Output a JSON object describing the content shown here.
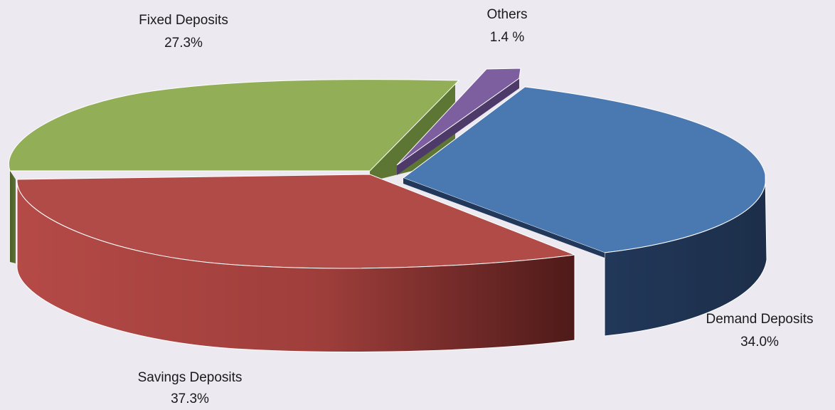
{
  "chart_data": {
    "type": "pie",
    "title": "",
    "legend": "none",
    "slices": [
      {
        "name": "Fixed Deposits",
        "value": 27.3,
        "label": "27.3%",
        "color": "#92AE57",
        "side_color": "#556B30"
      },
      {
        "name": "Others",
        "value": 1.4,
        "label": "1.4 %",
        "color": "#7D5FA0",
        "side_color": "#4E3A69"
      },
      {
        "name": "Demand Deposits",
        "value": 34.0,
        "label": "34.0%",
        "color": "#4A79B2",
        "side_color": "#1F324D"
      },
      {
        "name": "Savings Deposits",
        "value": 37.3,
        "label": "37.3%",
        "color": "#B14B48",
        "side_color": "#7A2A28"
      }
    ]
  }
}
